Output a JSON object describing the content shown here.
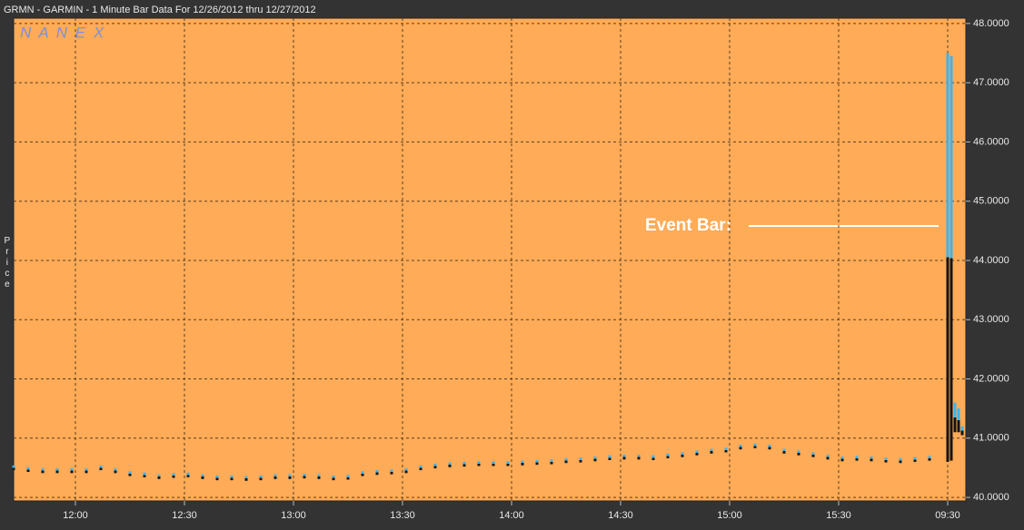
{
  "chart_data": {
    "type": "hilo",
    "title": "GRMN - GARMIN - 1 Minute Bar Data For 12/26/2012  thru  12/27/2012",
    "watermark": "N A N E X",
    "y_label": "Price",
    "annotation": "Event Bar:",
    "background": "#ffab57",
    "colors": {
      "high": "#3ab4f2",
      "low": "#141414"
    },
    "grid": true,
    "xlim": [
      0,
      262
    ],
    "xticks": [
      {
        "value": 17,
        "label": "12:00"
      },
      {
        "value": 47,
        "label": "12:30"
      },
      {
        "value": 77,
        "label": "13:00"
      },
      {
        "value": 107,
        "label": "13:30"
      },
      {
        "value": 137,
        "label": "14:00"
      },
      {
        "value": 167,
        "label": "14:30"
      },
      {
        "value": 197,
        "label": "15:00"
      },
      {
        "value": 227,
        "label": "15:30"
      },
      {
        "value": 257,
        "label": "09:30"
      }
    ],
    "ylim": [
      39.94,
      48.09
    ],
    "yticks": [
      {
        "value": 40,
        "label": "40.0000"
      },
      {
        "value": 41,
        "label": "41.0000"
      },
      {
        "value": 42,
        "label": "42.0000"
      },
      {
        "value": 43,
        "label": "43.0000"
      },
      {
        "value": 44,
        "label": "44.0000"
      },
      {
        "value": 45,
        "label": "45.0000"
      },
      {
        "value": 46,
        "label": "46.0000"
      },
      {
        "value": 47,
        "label": "47.0000"
      },
      {
        "value": 48,
        "label": "48.0000"
      }
    ],
    "x": [
      0,
      4,
      8,
      12,
      16,
      20,
      24,
      28,
      32,
      36,
      40,
      44,
      48,
      52,
      56,
      60,
      64,
      68,
      72,
      76,
      80,
      84,
      88,
      92,
      96,
      100,
      104,
      108,
      112,
      116,
      120,
      124,
      128,
      132,
      136,
      140,
      144,
      148,
      152,
      156,
      160,
      164,
      168,
      172,
      176,
      180,
      184,
      188,
      192,
      196,
      200,
      204,
      208,
      212,
      216,
      220,
      224,
      228,
      232,
      236,
      240,
      244,
      248,
      252,
      257,
      258,
      259,
      260,
      261
    ],
    "high": [
      40.54,
      40.51,
      40.49,
      40.49,
      40.49,
      40.49,
      40.54,
      40.49,
      40.44,
      40.42,
      40.39,
      40.41,
      40.42,
      40.39,
      40.37,
      40.37,
      40.36,
      40.37,
      40.39,
      40.39,
      40.4,
      40.39,
      40.37,
      40.38,
      40.44,
      40.46,
      40.47,
      40.49,
      40.54,
      40.57,
      40.59,
      40.6,
      40.61,
      40.61,
      40.61,
      40.62,
      40.63,
      40.64,
      40.66,
      40.67,
      40.69,
      40.71,
      40.72,
      40.72,
      40.71,
      40.74,
      40.76,
      40.79,
      40.82,
      40.84,
      40.89,
      40.91,
      40.89,
      40.82,
      40.79,
      40.76,
      40.72,
      40.69,
      40.7,
      40.69,
      40.67,
      40.66,
      40.68,
      40.7,
      47.5,
      47.45,
      41.6,
      41.5,
      41.2
    ],
    "low": [
      40.46,
      40.43,
      40.41,
      40.41,
      40.41,
      40.41,
      40.46,
      40.41,
      40.36,
      40.34,
      40.31,
      40.33,
      40.34,
      40.31,
      40.29,
      40.29,
      40.28,
      40.29,
      40.31,
      40.31,
      40.32,
      40.31,
      40.29,
      40.3,
      40.36,
      40.38,
      40.39,
      40.41,
      40.46,
      40.49,
      40.51,
      40.52,
      40.53,
      40.53,
      40.53,
      40.54,
      40.55,
      40.56,
      40.58,
      40.59,
      40.61,
      40.63,
      40.64,
      40.64,
      40.63,
      40.66,
      40.68,
      40.71,
      40.74,
      40.76,
      40.81,
      40.83,
      40.81,
      40.74,
      40.71,
      40.68,
      40.64,
      40.61,
      40.62,
      40.61,
      40.59,
      40.58,
      40.6,
      40.62,
      40.6,
      40.62,
      41.1,
      41.1,
      41.05
    ]
  }
}
